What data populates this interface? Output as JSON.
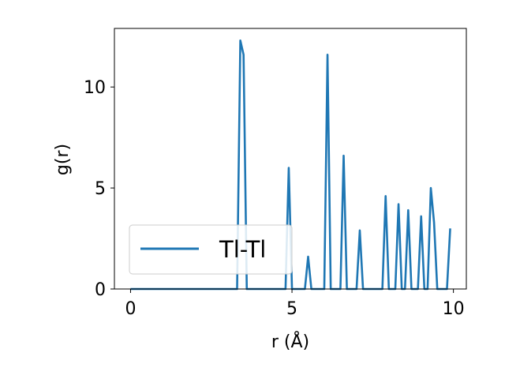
{
  "chart_data": {
    "type": "line",
    "xlabel": "r (Å)",
    "ylabel": "g(r)",
    "xlim": [
      -0.5,
      10.4
    ],
    "ylim": [
      0,
      12.9
    ],
    "xticks": [
      0,
      5,
      10
    ],
    "yticks": [
      0,
      5,
      10
    ],
    "xtick_labels": [
      "0",
      "5",
      "10"
    ],
    "ytick_labels": [
      "0",
      "5",
      "10"
    ],
    "grid": false,
    "legend_position": "lower-left",
    "series": [
      {
        "name": "Tl-Tl",
        "color": "#1f77b4",
        "x": [
          0,
          3.3,
          3.4,
          3.5,
          3.6,
          4.8,
          4.9,
          5.0,
          5.4,
          5.5,
          5.6,
          6.0,
          6.1,
          6.2,
          6.5,
          6.6,
          6.7,
          7.0,
          7.1,
          7.2,
          7.8,
          7.9,
          8.0,
          8.2,
          8.3,
          8.4,
          8.5,
          8.6,
          8.7,
          8.9,
          9.0,
          9.1,
          9.2,
          9.3,
          9.4,
          9.5,
          9.8,
          9.9
        ],
        "y": [
          0,
          0,
          12.3,
          11.6,
          0,
          0,
          6.0,
          0,
          0,
          1.6,
          0,
          0,
          11.6,
          0,
          0,
          6.6,
          0,
          0,
          2.9,
          0,
          0,
          4.6,
          0,
          0,
          4.2,
          0,
          0,
          3.9,
          0,
          0,
          3.6,
          0,
          0,
          5.0,
          3.3,
          0,
          0,
          3.0
        ]
      }
    ]
  }
}
